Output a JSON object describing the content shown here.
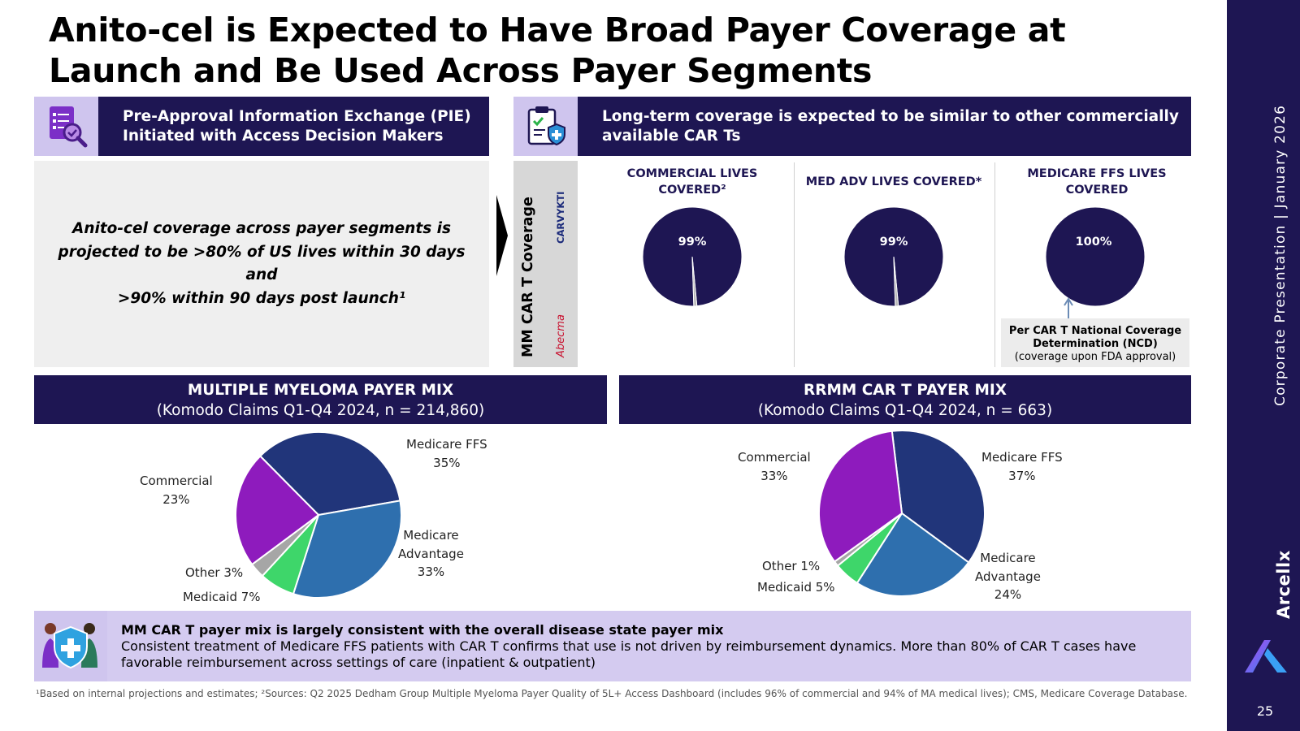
{
  "title": "Anito-cel is Expected to Have Broad Payer Coverage at Launch and Be Used Across Payer Segments",
  "pie_banner": {
    "line1": "Pre-Approval Information Exchange (PIE)",
    "line2": "Initiated with Access Decision Makers",
    "icon": "document-search-icon"
  },
  "coverage_banner": {
    "line1": "Long-term coverage is expected to be similar to other commercially",
    "line2": "available CAR Ts",
    "icon": "clipboard-shield-icon"
  },
  "callout": {
    "line1": "Anito-cel coverage across payer segments is",
    "line2": "projected to be >80% of US lives within 30 days and",
    "line3": ">90% within 90 days post launch¹"
  },
  "brand_strip": {
    "label": "MM CAR T Coverage",
    "brand1": "CARVYKTI",
    "brand2": "Abecma"
  },
  "coverage": [
    {
      "head_line1": "COMMERCIAL LIVES",
      "head_line2": "COVERED²",
      "value": "99%",
      "fraction": 0.99
    },
    {
      "head_line1": "MED ADV LIVES COVERED*",
      "head_line2": "",
      "value": "99%",
      "fraction": 0.99
    },
    {
      "head_line1": "MEDICARE FFS LIVES",
      "head_line2": "COVERED",
      "value": "100%",
      "fraction": 1.0
    }
  ],
  "ncd": {
    "line1": "Per CAR T National Coverage",
    "line2": "Determination (NCD)",
    "line3": "(coverage upon FDA approval)"
  },
  "mm_mix": {
    "title": "MULTIPLE MYELOMA PAYER MIX",
    "subtitle": "(Komodo Claims Q1-Q4 2024, n = 214,860)",
    "slices": [
      {
        "name": "Medicare FFS",
        "value": 35,
        "color": "#21357a",
        "label": "35%"
      },
      {
        "name": "Medicare Advantage",
        "value": 33,
        "color": "#2e6fae",
        "label": "33%"
      },
      {
        "name": "Medicaid",
        "value": 7,
        "color": "#3ed66a",
        "label": "7%"
      },
      {
        "name": "Other",
        "value": 3,
        "color": "#a6a6a6",
        "label": "3%"
      },
      {
        "name": "Commercial",
        "value": 23,
        "color": "#8e1bbd",
        "label": "23%"
      }
    ],
    "text": {
      "medicare_ffs": "Medicare FFS",
      "medicare_ffs_pct": "35%",
      "medicare_adv_1": "Medicare",
      "medicare_adv_2": "Advantage",
      "medicare_adv_pct": "33%",
      "commercial": "Commercial",
      "commercial_pct": "23%",
      "other": "Other 3%",
      "medicaid": "Medicaid 7%"
    }
  },
  "rrmm_mix": {
    "title": "RRMM CAR T PAYER MIX",
    "subtitle": "(Komodo Claims Q1-Q4 2024, n = 663)",
    "slices": [
      {
        "name": "Medicare FFS",
        "value": 37,
        "color": "#21357a",
        "label": "37%"
      },
      {
        "name": "Medicare Advantage",
        "value": 24,
        "color": "#2e6fae",
        "label": "24%"
      },
      {
        "name": "Medicaid",
        "value": 5,
        "color": "#3ed66a",
        "label": "5%"
      },
      {
        "name": "Other",
        "value": 1,
        "color": "#a6a6a6",
        "label": "1%"
      },
      {
        "name": "Commercial",
        "value": 33,
        "color": "#8e1bbd",
        "label": "33%"
      }
    ],
    "text": {
      "medicare_ffs": "Medicare FFS",
      "medicare_ffs_pct": "37%",
      "medicare_adv_1": "Medicare",
      "medicare_adv_2": "Advantage",
      "medicare_adv_pct": "24%",
      "commercial": "Commercial",
      "commercial_pct": "33%",
      "other": "Other 1%",
      "medicaid": "Medicaid 5%"
    }
  },
  "note": {
    "bold": "MM CAR T payer mix is largely consistent with the overall disease state payer mix",
    "body": "Consistent treatment of Medicare FFS patients with CAR T confirms that use is not driven by reimbursement dynamics. More than 80% of CAR T cases have favorable reimbursement across settings of care (inpatient & outpatient)",
    "icon": "patient-shield-icon"
  },
  "footnote": "¹Based on internal projections and estimates; ²Sources: Q2 2025 Dedham Group Multiple Myeloma Payer Quality of 5L+ Access Dashboard (includes 96% of commercial and 94% of MA medical lives); CMS, Medicare Coverage Database.",
  "sidebar": {
    "text": "Corporate Presentation  |  January 2026",
    "brand": "Arcellx",
    "page": "25",
    "colors": {
      "bg": "#1e1653",
      "accent": "#cfc5ee"
    }
  }
}
